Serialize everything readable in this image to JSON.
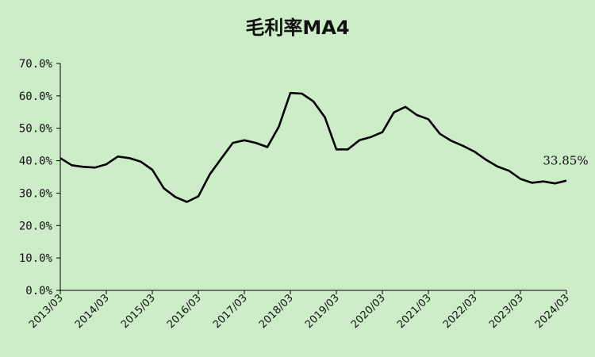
{
  "chart_data": {
    "type": "line",
    "title": "毛利率MA4",
    "xlabel": "",
    "ylabel": "",
    "ylim": [
      0,
      70
    ],
    "yticks": [
      "0.0%",
      "10.0%",
      "20.0%",
      "30.0%",
      "40.0%",
      "50.0%",
      "60.0%",
      "70.0%"
    ],
    "xticks": [
      "2013/03",
      "2014/03",
      "2015/03",
      "2016/03",
      "2017/03",
      "2018/03",
      "2019/03",
      "2020/03",
      "2021/03",
      "2022/03",
      "2023/03",
      "2024/03"
    ],
    "grid": false,
    "legend": "none",
    "line_color": "#000000",
    "background_color": "#cdedc9",
    "end_label": "33.85%",
    "series": [
      {
        "x": [
          "2013/03",
          "2013/06",
          "2013/09",
          "2013/12",
          "2014/03",
          "2014/06",
          "2014/09",
          "2014/12",
          "2015/03",
          "2015/06",
          "2015/09",
          "2015/12",
          "2016/03",
          "2016/06",
          "2016/09",
          "2016/12",
          "2017/03",
          "2017/06",
          "2017/09",
          "2017/12",
          "2018/03",
          "2018/06",
          "2018/09",
          "2018/12",
          "2019/03",
          "2019/06",
          "2019/09",
          "2019/12",
          "2020/03",
          "2020/06",
          "2020/09",
          "2020/12",
          "2021/03",
          "2021/06",
          "2021/09",
          "2021/12",
          "2022/03",
          "2022/06",
          "2022/09",
          "2022/12",
          "2023/03",
          "2023/06",
          "2023/09",
          "2023/12",
          "2024/03"
        ],
        "values": [
          40.8,
          38.6,
          38.1,
          37.9,
          38.9,
          41.3,
          40.8,
          39.7,
          37.2,
          31.5,
          28.8,
          27.3,
          29.0,
          35.8,
          40.7,
          45.5,
          46.3,
          45.5,
          44.2,
          50.5,
          60.9,
          60.7,
          58.3,
          53.4,
          43.5,
          43.5,
          46.3,
          47.3,
          48.8,
          54.9,
          56.6,
          54.1,
          52.8,
          48.3,
          46.1,
          44.6,
          42.8,
          40.3,
          38.2,
          36.9,
          34.4,
          33.2,
          33.6,
          33.0,
          33.85
        ]
      }
    ]
  }
}
